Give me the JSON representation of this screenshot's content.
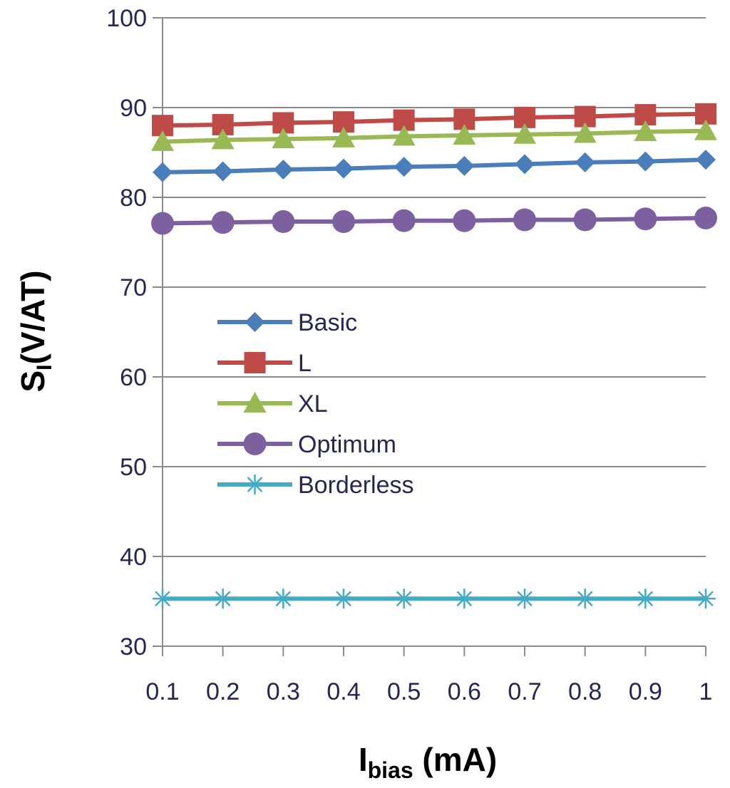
{
  "chart_data": {
    "type": "line",
    "x": [
      0.1,
      0.2,
      0.3,
      0.4,
      0.5,
      0.6,
      0.7,
      0.8,
      0.9,
      1
    ],
    "x_tick_labels": [
      "0.1",
      "0.2",
      "0.3",
      "0.4",
      "0.5",
      "0.6",
      "0.7",
      "0.8",
      "0.9",
      "1"
    ],
    "y_ticks": [
      30,
      40,
      50,
      60,
      70,
      80,
      90,
      100
    ],
    "ylim": [
      30,
      100
    ],
    "xlabel": {
      "main": "I",
      "sub": "bias",
      "unit": " (mA)"
    },
    "ylabel": {
      "main": "S",
      "sub": "I",
      "unit": "(V/AT)"
    },
    "grid": "horizontal",
    "legend_position": "center-left",
    "series": [
      {
        "name": "Basic",
        "color": "#4a7ebb",
        "marker": "diamond",
        "values": [
          82.8,
          82.9,
          83.1,
          83.2,
          83.4,
          83.5,
          83.7,
          83.9,
          84.0,
          84.2
        ]
      },
      {
        "name": "L",
        "color": "#be4b48",
        "marker": "square",
        "values": [
          88.0,
          88.1,
          88.3,
          88.4,
          88.6,
          88.7,
          88.9,
          89.0,
          89.2,
          89.3
        ]
      },
      {
        "name": "XL",
        "color": "#98b954",
        "marker": "triangle",
        "values": [
          86.2,
          86.4,
          86.5,
          86.6,
          86.8,
          86.9,
          87.0,
          87.1,
          87.3,
          87.4
        ]
      },
      {
        "name": "Optimum",
        "color": "#7d60a0",
        "marker": "circle",
        "values": [
          77.1,
          77.2,
          77.3,
          77.3,
          77.4,
          77.4,
          77.5,
          77.5,
          77.6,
          77.7
        ]
      },
      {
        "name": "Borderless",
        "color": "#46aac5",
        "marker": "asterisk",
        "values": [
          35.3,
          35.3,
          35.3,
          35.3,
          35.3,
          35.3,
          35.3,
          35.3,
          35.3,
          35.3
        ]
      }
    ]
  }
}
